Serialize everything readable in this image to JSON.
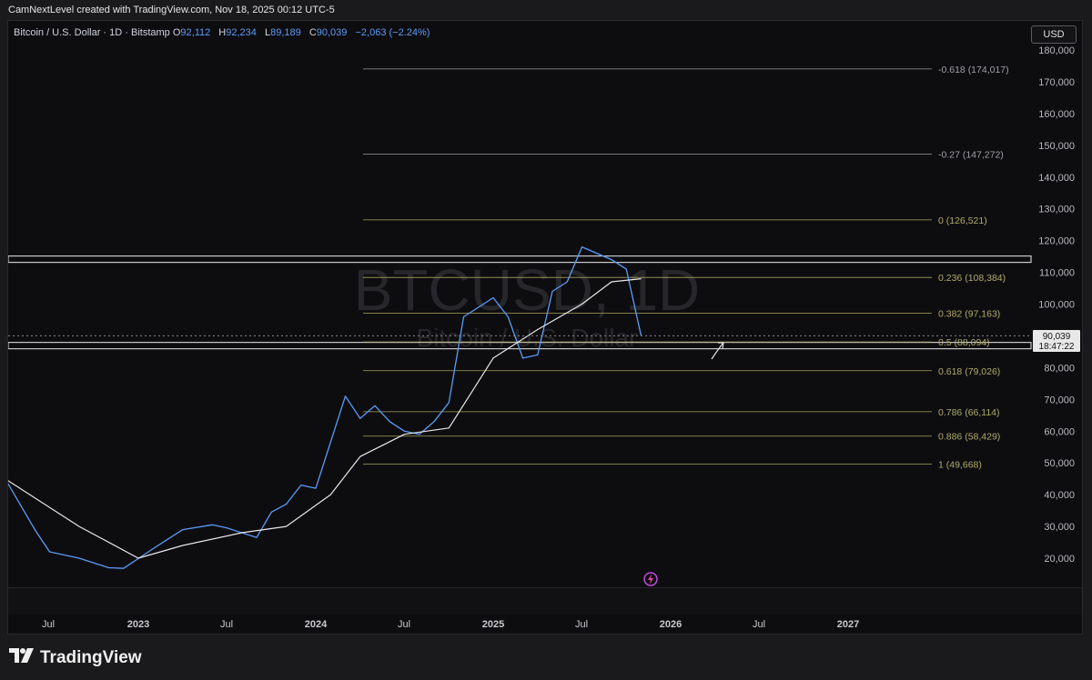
{
  "header": {
    "credit": "CamNextLevel created with TradingView.com, Nov 18, 2025 00:12 UTC-5"
  },
  "legend": {
    "symbol": "Bitcoin / U.S. Dollar · 1D · Bitstamp",
    "open_label": "O",
    "open": "92,112",
    "high_label": "H",
    "high": "92,234",
    "low_label": "L",
    "low": "89,189",
    "close_label": "C",
    "close": "90,039",
    "change": "−2,063 (−2.24%)"
  },
  "currency": "USD",
  "watermark": {
    "ticker": "BTCUSD, 1D",
    "name": "Bitcoin / U.S. Dollar"
  },
  "price_tag": {
    "price": "90,039",
    "countdown": "18:47:22"
  },
  "brand": {
    "name": "TradingView"
  },
  "colors": {
    "price_line": "#5b9cf6",
    "fib_line": "#a7a35a",
    "ma_line": "#e8e8e8",
    "background": "#0d0d10"
  },
  "chart_data": {
    "type": "line",
    "ylim": [
      10000,
      185000
    ],
    "y_ticks": [
      "20,000",
      "30,000",
      "40,000",
      "50,000",
      "60,000",
      "70,000",
      "80,000",
      "90,000",
      "100,000",
      "110,000",
      "120,000",
      "130,000",
      "140,000",
      "150,000",
      "160,000",
      "170,000",
      "180,000"
    ],
    "x_ticks": [
      "Jul",
      "2023",
      "Jul",
      "2024",
      "Jul",
      "2025",
      "Jul",
      "2026",
      "Jul",
      "2027"
    ],
    "series": [
      {
        "x": [
          "2022-04",
          "2022-06",
          "2022-07",
          "2022-09",
          "2022-11",
          "2022-12",
          "2023-02",
          "2023-04",
          "2023-06",
          "2023-07",
          "2023-09",
          "2023-10",
          "2023-11",
          "2023-12",
          "2024-01",
          "2024-03",
          "2024-04",
          "2024-05",
          "2024-06",
          "2024-07",
          "2024-08",
          "2024-09",
          "2024-10",
          "2024-11",
          "2024-12",
          "2025-01",
          "2025-02",
          "2025-03",
          "2025-04",
          "2025-05",
          "2025-06",
          "2025-07",
          "2025-08",
          "2025-09",
          "2025-10",
          "2025-11"
        ],
        "y": [
          45000,
          29000,
          22000,
          20000,
          17000,
          16800,
          23000,
          29000,
          30500,
          29500,
          26500,
          34500,
          37000,
          43000,
          42000,
          71000,
          64000,
          68000,
          63000,
          60000,
          59000,
          63000,
          69000,
          96000,
          99000,
          102000,
          96000,
          83000,
          84000,
          104000,
          107000,
          118000,
          116000,
          114000,
          111000,
          90039
        ]
      },
      {
        "x": [
          "2022-04",
          "2022-09",
          "2023-01",
          "2023-04",
          "2023-08",
          "2023-11",
          "2024-02",
          "2024-04",
          "2024-07",
          "2024-10",
          "2025-01",
          "2025-04",
          "2025-07",
          "2025-09",
          "2025-11"
        ],
        "y": [
          45000,
          30000,
          20000,
          24000,
          28000,
          30000,
          40000,
          52000,
          59000,
          61000,
          83000,
          92000,
          100000,
          107000,
          108000
        ]
      }
    ],
    "fib_levels": [
      {
        "label": "-0.618 (174,017)",
        "value": 174017
      },
      {
        "label": "-0.27 (147,272)",
        "value": 147272
      },
      {
        "label": "0 (126,521)",
        "value": 126521
      },
      {
        "label": "0.236 (108,384)",
        "value": 108384
      },
      {
        "label": "0.382 (97,163)",
        "value": 97163
      },
      {
        "label": "0.5 (88,094)",
        "value": 88094
      },
      {
        "label": "0.618 (79,026)",
        "value": 79026
      },
      {
        "label": "0.786 (66,114)",
        "value": 66114
      },
      {
        "label": "0.886 (58,429)",
        "value": 58429
      },
      {
        "label": "1 (49,668)",
        "value": 49668
      }
    ],
    "horizontal_zones": [
      {
        "value": 114000
      },
      {
        "value": 86800
      }
    ]
  }
}
